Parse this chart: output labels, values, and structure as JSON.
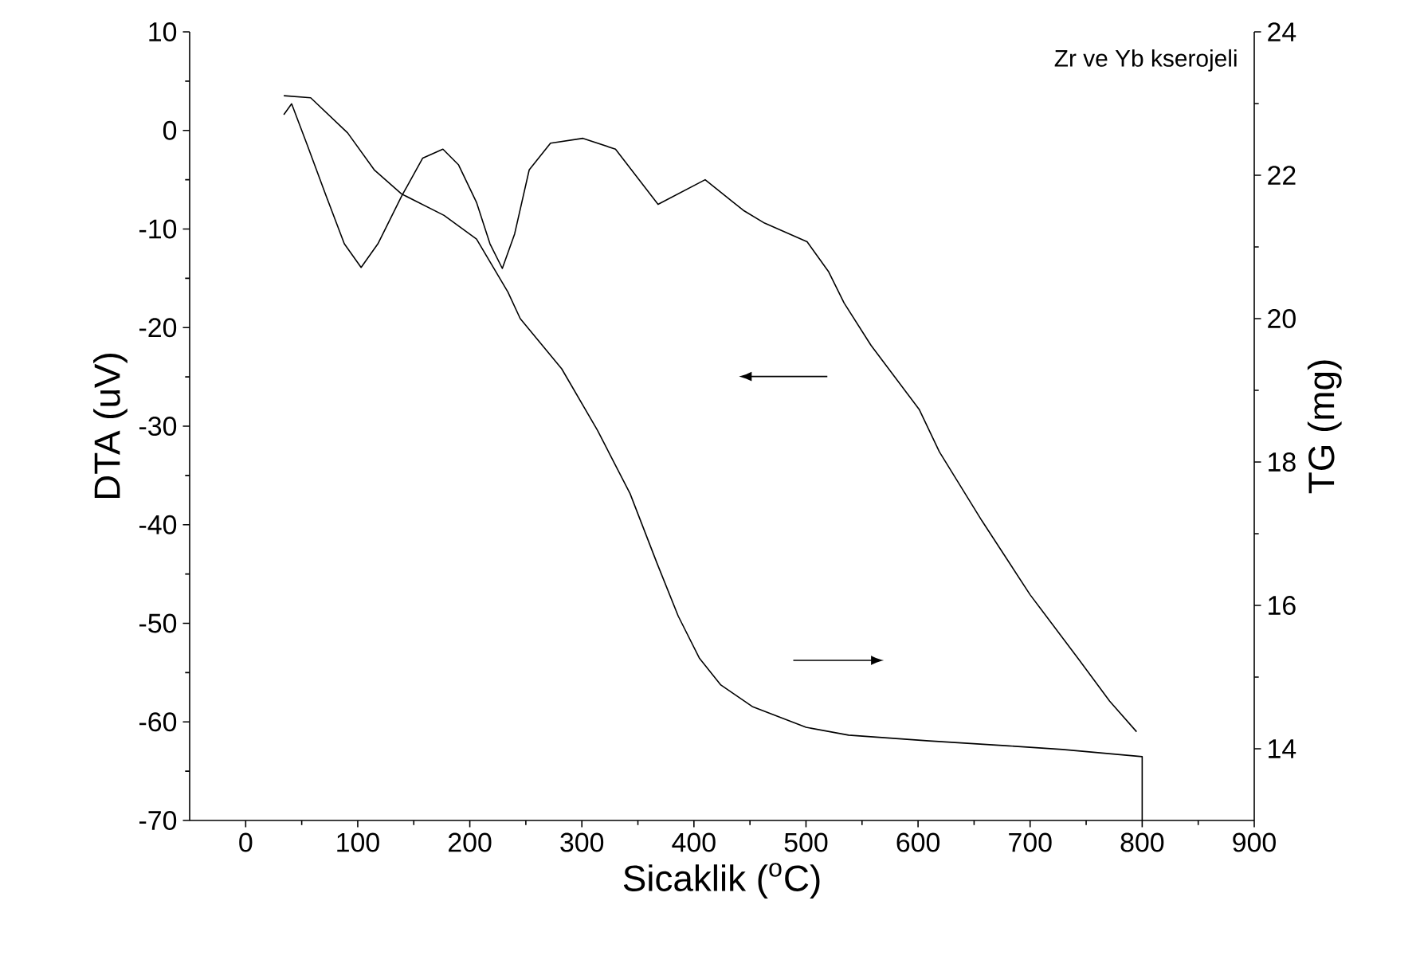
{
  "chart_data": {
    "type": "line",
    "xlabel": "Sicaklik ($^{o}$C)",
    "ylabel": "DTA (uV)",
    "y2label": "TG (mg)",
    "annotations": [
      "Zr ve Yb kserojeli"
    ],
    "xlim": [
      -50,
      900
    ],
    "xticks": [
      0,
      100,
      200,
      300,
      400,
      500,
      600,
      700,
      800,
      900
    ],
    "ylim": [
      -70,
      10
    ],
    "yticks": [
      -70,
      -60,
      -50,
      -40,
      -30,
      -20,
      -10,
      0,
      10
    ],
    "y2lim": [
      13,
      24
    ],
    "y2ticks": [
      14,
      16,
      18,
      20,
      22,
      24
    ],
    "series": [
      {
        "color": "#000000",
        "x": [
          34,
          41,
          55,
          72,
          88,
          103,
          118,
          139,
          158,
          176,
          190,
          206,
          218,
          229,
          240,
          253,
          272,
          301,
          330,
          368,
          410,
          444,
          463,
          501,
          520,
          534,
          558,
          601,
          619,
          657,
          700,
          743,
          771,
          795
        ],
        "values": [
          1.6,
          2.7,
          -1.5,
          -6.7,
          -11.5,
          -13.9,
          -11.5,
          -6.7,
          -2.8,
          -1.9,
          -3.5,
          -7.3,
          -11.5,
          -14.0,
          -10.5,
          -4.0,
          -1.3,
          -0.8,
          -1.9,
          -7.5,
          -5.0,
          -8.1,
          -9.4,
          -11.3,
          -14.3,
          -17.5,
          -21.8,
          -28.3,
          -32.6,
          -39.6,
          -47.1,
          -53.6,
          -57.9,
          -61.0
        ]
      },
      {
        "color": "#000000",
        "axis": "y2",
        "x": [
          34,
          58,
          91,
          115,
          139,
          177,
          206,
          234,
          245,
          282,
          314,
          343,
          367,
          386,
          405,
          424,
          452,
          500,
          538,
          610,
          681,
          729,
          800,
          800
        ],
        "values": [
          23.11,
          23.08,
          22.59,
          22.07,
          21.74,
          21.44,
          21.11,
          20.37,
          20.0,
          19.3,
          18.44,
          17.56,
          16.59,
          15.85,
          15.26,
          14.89,
          14.59,
          14.3,
          14.19,
          14.11,
          14.04,
          13.99,
          13.89,
          13.0
        ]
      }
    ]
  }
}
